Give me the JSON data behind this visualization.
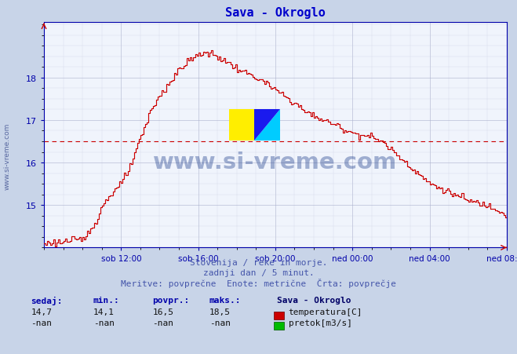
{
  "title": "Sava - Okroglo",
  "title_color": "#0000cc",
  "bg_color": "#c8d4e8",
  "plot_bg_color": "#f0f4fc",
  "line_color": "#cc0000",
  "avg_line_color": "#cc0000",
  "grid_color_major": "#aab0cc",
  "grid_color_minor": "#c8cce0",
  "ylabel_color": "#0000aa",
  "xlabel_color": "#0000aa",
  "ylim": [
    14.0,
    19.3
  ],
  "yticks": [
    15,
    16,
    17,
    18
  ],
  "avg_value": 16.5,
  "xlim_hours": 24,
  "tick_positions_h": [
    4,
    8,
    12,
    16,
    20,
    24
  ],
  "xtick_labels": [
    "sob 12:00",
    "sob 16:00",
    "sob 20:00",
    "ned 00:00",
    "ned 04:00",
    "ned 08:00"
  ],
  "footer_line1": "Slovenija / reke in morje.",
  "footer_line2": "zadnji dan / 5 minut.",
  "footer_line3": "Meritve: povprečne  Enote: metrične  Črta: povprečje",
  "footer_color": "#4455aa",
  "watermark": "www.si-vreme.com",
  "watermark_color": "#1a3a8a",
  "legend_title": "Sava - Okroglo",
  "legend_title_color": "#000066",
  "sedaj_label": "sedaj:",
  "min_label": "min.:",
  "povpr_label": "povpr.:",
  "maks_label": "maks.:",
  "sedaj_val": "14,7",
  "min_val": "14,1",
  "povpr_val": "16,5",
  "maks_val": "18,5",
  "sedaj2_val": "-nan",
  "min2_val": "-nan",
  "povpr2_val": "-nan",
  "maks2_val": "-nan",
  "temp_label": "temperatura[C]",
  "flow_label": "pretok[m3/s]",
  "temp_color": "#cc0000",
  "flow_color": "#00bb00",
  "spine_color": "#0000aa",
  "left_watermark": "www.si-vreme.com"
}
